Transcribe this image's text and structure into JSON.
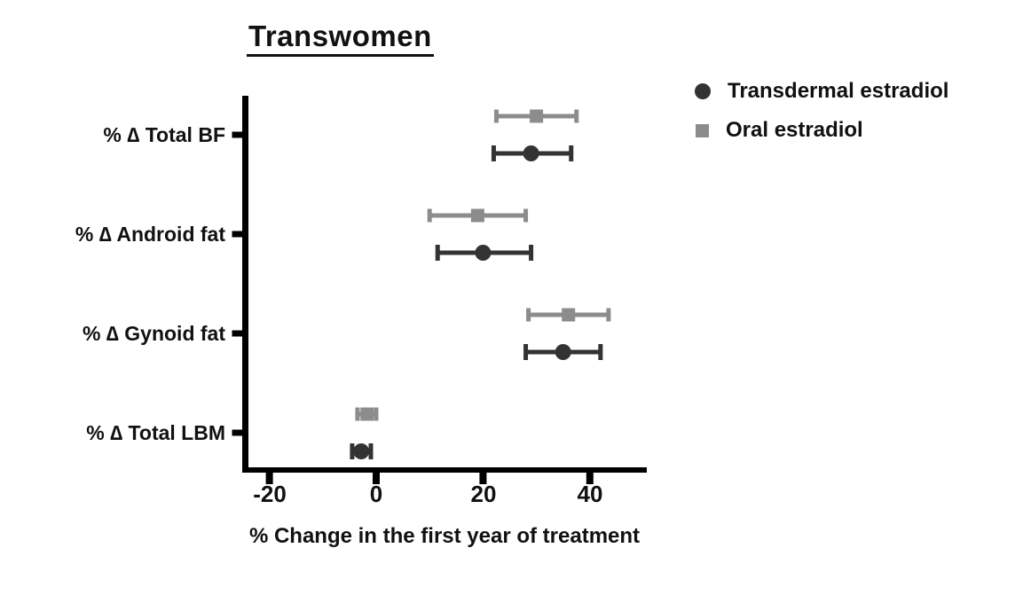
{
  "chart_data": {
    "type": "scatter",
    "variant": "horizontal-dot-plot-with-error-bars",
    "title": "Transwomen",
    "xlabel": "% Change in the first year of treatment",
    "ylabel": "",
    "categories": [
      "% ∆ Total BF",
      "% ∆ Android fat",
      "% ∆ Gynoid fat",
      "% ∆ Total LBM"
    ],
    "xticks": [
      "-20",
      "0",
      "20",
      "40"
    ],
    "xlim": [
      -25,
      50.5
    ],
    "grid": false,
    "legend_position": "top-right",
    "axis_color": "#000000",
    "series": [
      {
        "name": "Transdermal estradiol",
        "marker": "circle",
        "color": "#333333",
        "values": [
          29,
          20,
          35,
          -2.8
        ],
        "ci_low": [
          22,
          11.5,
          28,
          -4.5
        ],
        "ci_high": [
          36.5,
          29,
          42,
          -1
        ]
      },
      {
        "name": "Oral estradiol",
        "marker": "square",
        "color": "#8c8c8c",
        "values": [
          30,
          19,
          36,
          -1.7
        ],
        "ci_low": [
          22.5,
          10,
          28.5,
          -3.5
        ],
        "ci_high": [
          37.5,
          28,
          43.5,
          0
        ]
      }
    ]
  }
}
